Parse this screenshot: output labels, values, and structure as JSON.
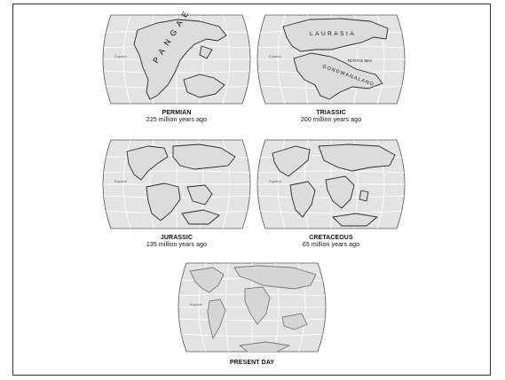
{
  "maps": [
    {
      "era": "PERMIAN",
      "age": "225 million years ago",
      "labels": {
        "supercontinent": "PANGAEA"
      }
    },
    {
      "era": "TRIASSIC",
      "age": "200 million years ago",
      "labels": {
        "north": "LAURASIA",
        "sea": "TETHYS SEA",
        "south": "GONDWANALAND"
      }
    },
    {
      "era": "JURASSIC",
      "age": "135 million years ago"
    },
    {
      "era": "CRETACEOUS",
      "age": "65 million years ago"
    },
    {
      "era": "PRESENT DAY",
      "age": ""
    }
  ],
  "equator_label": "Equator",
  "colors": {
    "ocean": "#e4e4e4",
    "grid": "#ffffff",
    "coast": "#2a2a2a",
    "border": "#333333"
  }
}
